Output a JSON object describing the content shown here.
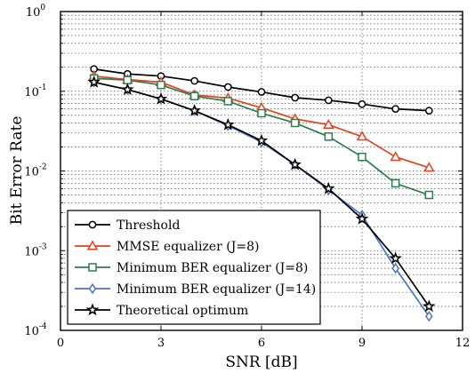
{
  "chart_data": {
    "type": "line",
    "title": "",
    "xlabel": "SNR [dB]",
    "ylabel": "Bit Error Rate",
    "xlim": [
      0,
      12
    ],
    "ylim": [
      0.0001,
      1
    ],
    "yscale": "log",
    "grid": true,
    "legend_position": "bottom-left",
    "x_ticks": [
      0,
      3,
      6,
      9,
      12
    ],
    "y_ticks": [
      {
        "base": "10",
        "exp": "-4",
        "value": 0.0001
      },
      {
        "base": "10",
        "exp": "-3",
        "value": 0.001
      },
      {
        "base": "10",
        "exp": "-2",
        "value": 0.01
      },
      {
        "base": "10",
        "exp": "-1",
        "value": 0.1
      },
      {
        "base": "10",
        "exp": "0",
        "value": 1
      }
    ],
    "series": [
      {
        "name": "Threshold",
        "color": "#000000",
        "marker": "circle",
        "x": [
          1,
          2,
          3,
          4,
          5,
          6,
          7,
          8,
          9,
          10,
          11
        ],
        "y": [
          0.19,
          0.165,
          0.155,
          0.135,
          0.113,
          0.098,
          0.083,
          0.077,
          0.069,
          0.06,
          0.057
        ]
      },
      {
        "name": "MMSE equalizer (J=8)",
        "color": "#e8401c",
        "marker": "triangle",
        "x": [
          1,
          2,
          3,
          4,
          5,
          6,
          7,
          8,
          9,
          10,
          11
        ],
        "y": [
          0.155,
          0.14,
          0.13,
          0.09,
          0.082,
          0.062,
          0.045,
          0.038,
          0.027,
          0.015,
          0.011
        ]
      },
      {
        "name": "Minimum BER equalizer (J=8)",
        "color": "#2e7d4f",
        "marker": "square",
        "x": [
          1,
          2,
          3,
          4,
          5,
          6,
          7,
          8,
          9,
          10,
          11
        ],
        "y": [
          0.145,
          0.138,
          0.12,
          0.087,
          0.075,
          0.053,
          0.04,
          0.027,
          0.015,
          0.007,
          0.005
        ]
      },
      {
        "name": "Minimum BER equalizer (J=14)",
        "color": "#4a74c9",
        "marker": "diamond",
        "x": [
          1,
          2,
          3,
          4,
          5,
          6,
          7,
          8,
          9,
          10,
          11
        ],
        "y": [
          0.13,
          0.105,
          0.08,
          0.057,
          0.037,
          0.023,
          0.012,
          0.0058,
          0.0028,
          0.0006,
          0.00015
        ]
      },
      {
        "name": "Theoretical optimum",
        "color": "#000000",
        "marker": "star",
        "x": [
          1,
          2,
          3,
          4,
          5,
          6,
          7,
          8,
          9,
          10,
          11
        ],
        "y": [
          0.13,
          0.105,
          0.08,
          0.057,
          0.038,
          0.024,
          0.012,
          0.006,
          0.0025,
          0.0008,
          0.0002
        ]
      }
    ]
  }
}
